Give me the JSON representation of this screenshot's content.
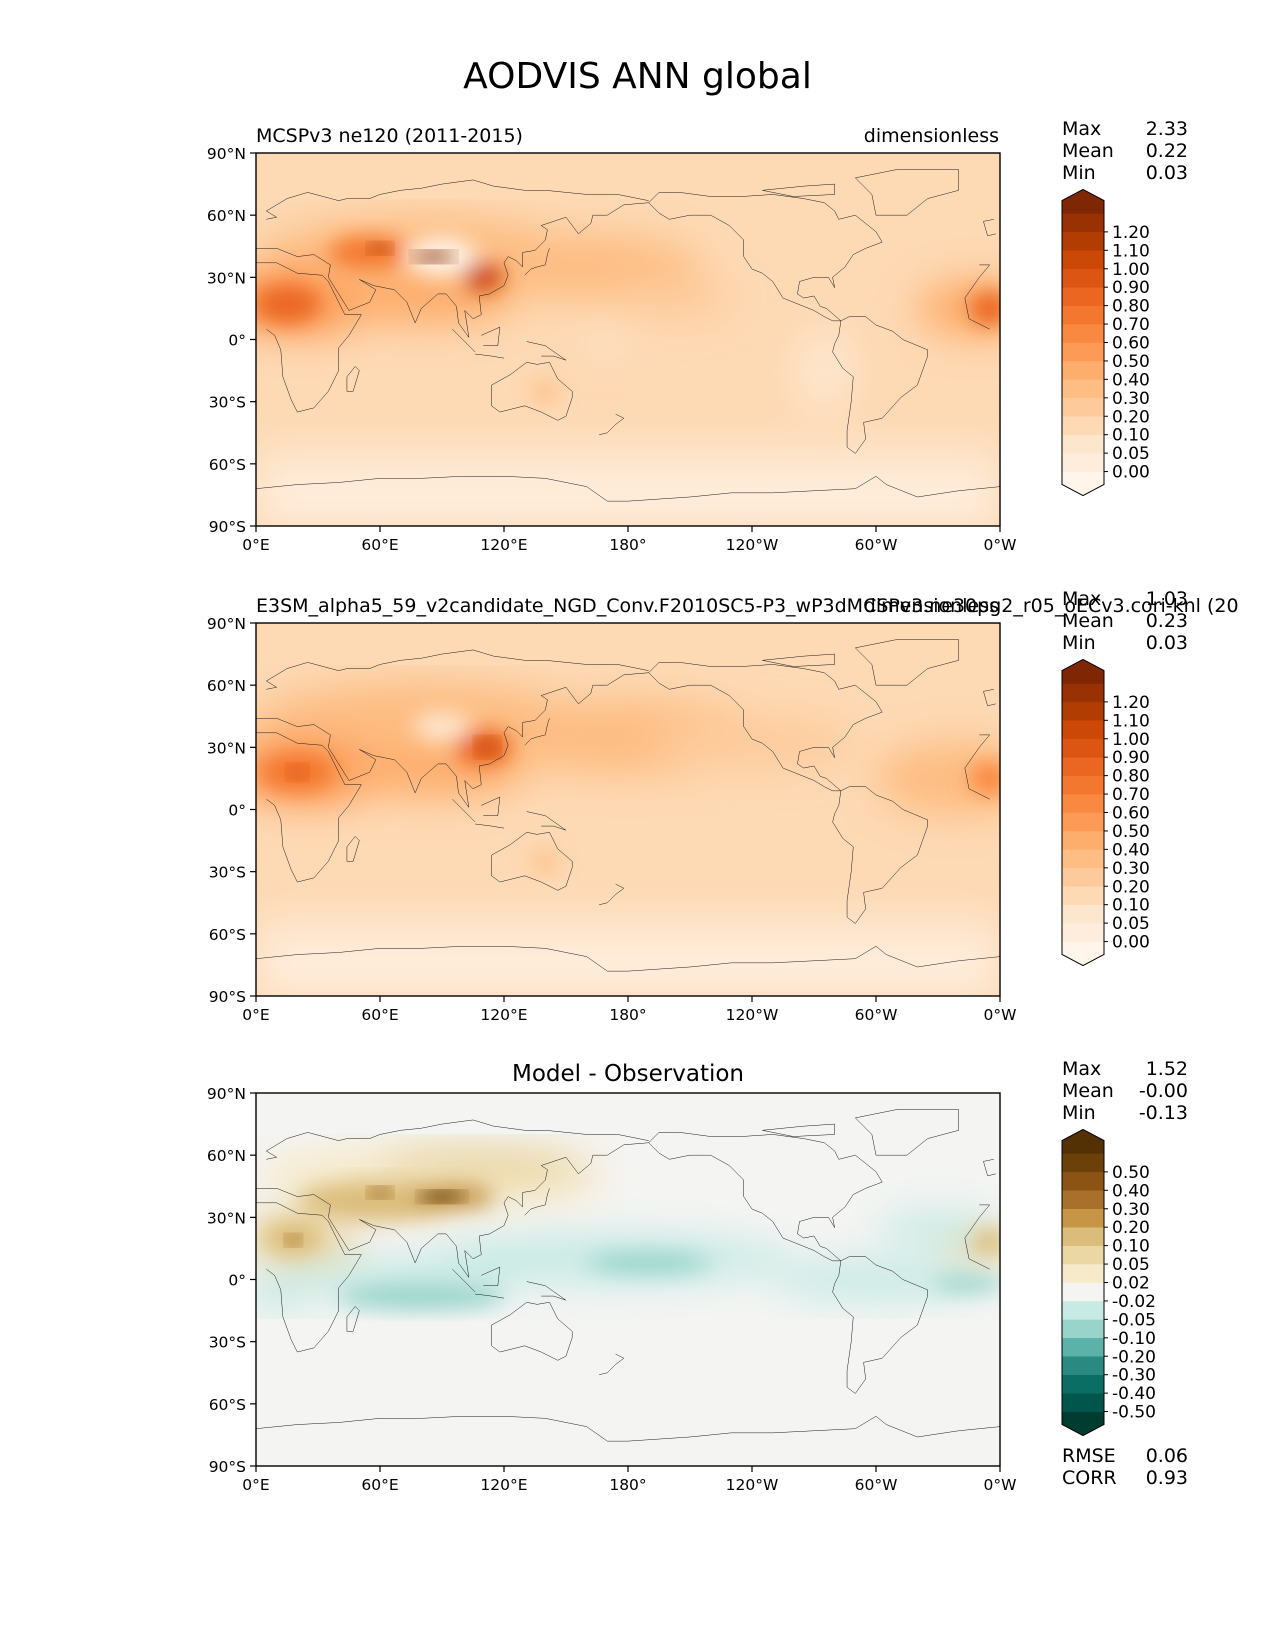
{
  "figure": {
    "title": "AODVIS ANN global",
    "map_x_ticks": [
      "0°E",
      "60°E",
      "120°E",
      "180°",
      "120°W",
      "60°W",
      "0°W"
    ],
    "map_y_ticks": [
      "90°N",
      "60°N",
      "30°N",
      "0°",
      "30°S",
      "60°S",
      "90°S"
    ]
  },
  "chart_data": [
    {
      "type": "heatmap",
      "panel": "test",
      "title_left": "MCSPv3 ne120 (2011-2015)",
      "title_right": "dimensionless",
      "stats": [
        {
          "label": "Max",
          "value": "2.33"
        },
        {
          "label": "Mean",
          "value": "0.22"
        },
        {
          "label": "Min",
          "value": "0.03"
        }
      ],
      "colorbar": {
        "levels": [
          "0.00",
          "0.05",
          "0.10",
          "0.20",
          "0.30",
          "0.40",
          "0.50",
          "0.60",
          "0.70",
          "0.80",
          "0.90",
          "1.00",
          "1.10",
          "1.20"
        ],
        "colors": [
          "#fff5eb",
          "#feeddc",
          "#fde6ce",
          "#fdd9b4",
          "#fdcb9b",
          "#fdbd83",
          "#fdad6c",
          "#fd9a55",
          "#f98841",
          "#f3772e",
          "#ea6621",
          "#dc5513",
          "#cc4807",
          "#b23d03",
          "#983204",
          "#7f2704"
        ]
      },
      "x_range": [
        0,
        360
      ],
      "y_range": [
        -90,
        90
      ]
    },
    {
      "type": "heatmap",
      "panel": "reference",
      "title_left": "E3SM_alpha5_59_v2candidate_NGD_Conv.F2010SC5-P3_wP3dMCSPv3.ne30pg2_r05_oECv3.cori-knl (20",
      "title_right": "dimensionless",
      "stats": [
        {
          "label": "Max",
          "value": "1.03"
        },
        {
          "label": "Mean",
          "value": "0.23"
        },
        {
          "label": "Min",
          "value": "0.03"
        }
      ],
      "colorbar": {
        "levels": [
          "0.00",
          "0.05",
          "0.10",
          "0.20",
          "0.30",
          "0.40",
          "0.50",
          "0.60",
          "0.70",
          "0.80",
          "0.90",
          "1.00",
          "1.10",
          "1.20"
        ],
        "colors": [
          "#fff5eb",
          "#feeddc",
          "#fde6ce",
          "#fdd9b4",
          "#fdcb9b",
          "#fdbd83",
          "#fdad6c",
          "#fd9a55",
          "#f98841",
          "#f3772e",
          "#ea6621",
          "#dc5513",
          "#cc4807",
          "#b23d03",
          "#983204",
          "#7f2704"
        ]
      },
      "x_range": [
        0,
        360
      ],
      "y_range": [
        -90,
        90
      ]
    },
    {
      "type": "heatmap",
      "panel": "difference",
      "title_center": "Model - Observation",
      "stats": [
        {
          "label": "Max",
          "value": "1.52"
        },
        {
          "label": "Mean",
          "value": "-0.00"
        },
        {
          "label": "Min",
          "value": "-0.13"
        }
      ],
      "extra_stats": [
        {
          "label": "RMSE",
          "value": "0.06"
        },
        {
          "label": "CORR",
          "value": "0.93"
        }
      ],
      "colorbar": {
        "levels": [
          "-0.50",
          "-0.40",
          "-0.30",
          "-0.20",
          "-0.10",
          "-0.05",
          "-0.02",
          "0.02",
          "0.05",
          "0.10",
          "0.20",
          "0.30",
          "0.40",
          "0.50"
        ],
        "colors": [
          "#003c30",
          "#01564b",
          "#0b6e65",
          "#2a8a82",
          "#5ab2a8",
          "#98d4ca",
          "#c8eae4",
          "#f4f4f3",
          "#f6eacb",
          "#ebd7a4",
          "#dbbd7b",
          "#c69646",
          "#a8702a",
          "#8c5414",
          "#6b4009",
          "#543005"
        ]
      },
      "x_range": [
        0,
        360
      ],
      "y_range": [
        -90,
        90
      ]
    }
  ]
}
